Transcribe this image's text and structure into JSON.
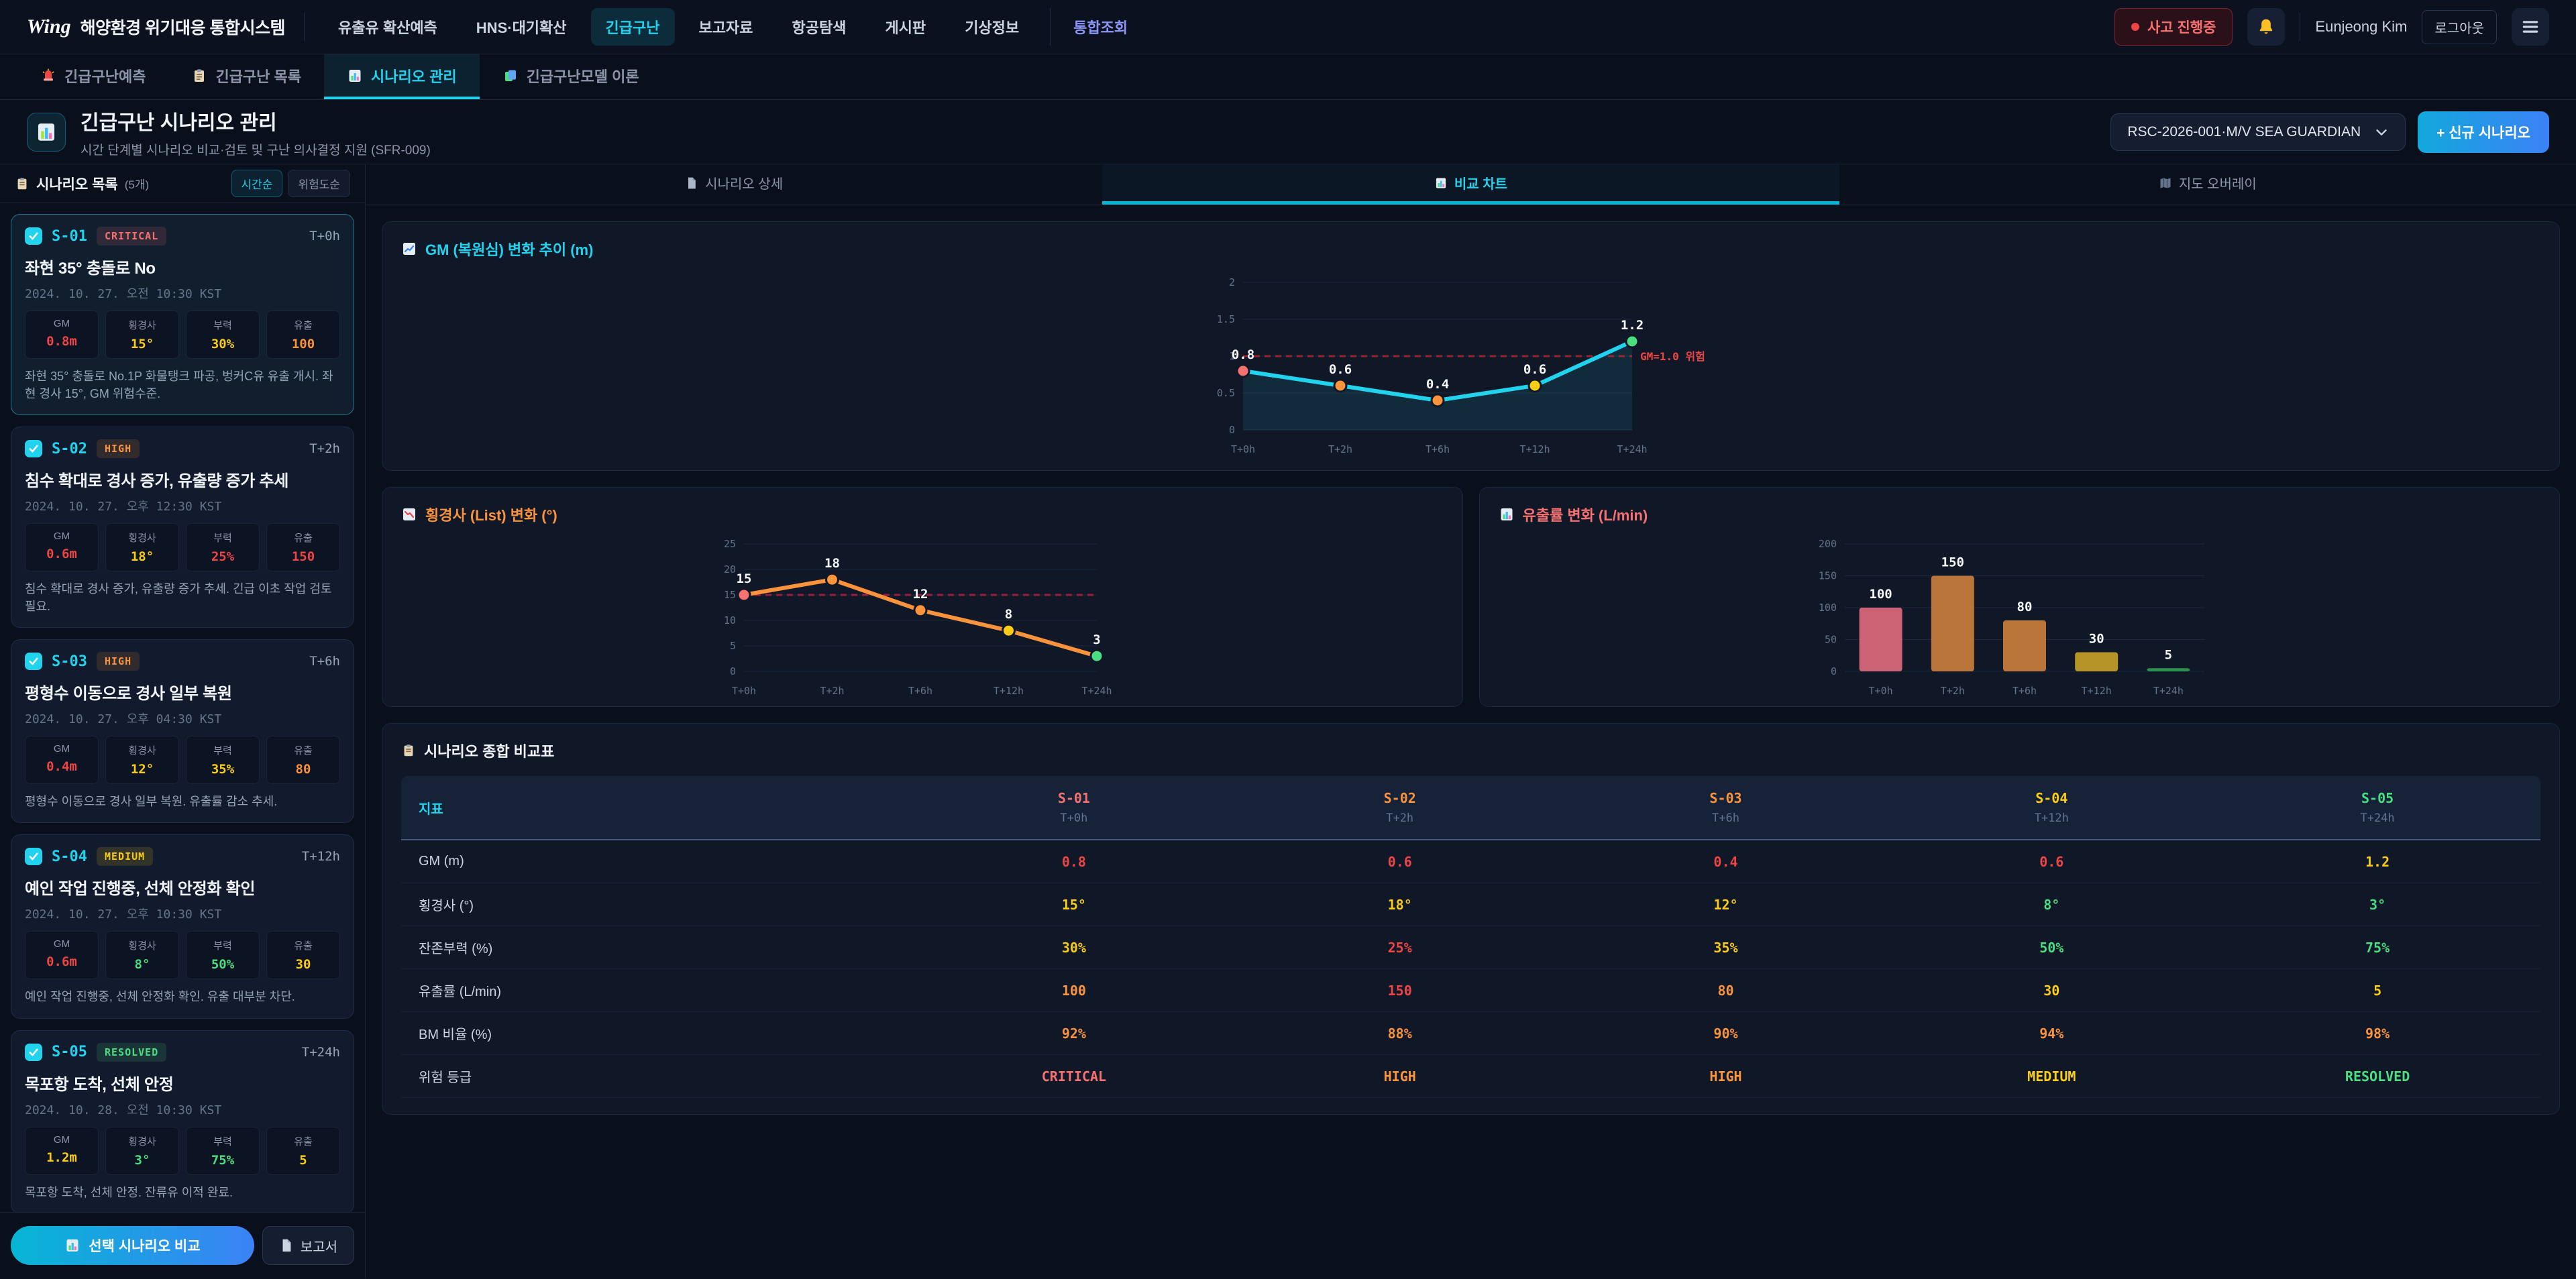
{
  "brand": {
    "logo": "Wing",
    "title": "해양환경 위기대응 통합시스템"
  },
  "nav": {
    "items": [
      {
        "label": "유출유 확산예측"
      },
      {
        "label": "HNS·대기확산"
      },
      {
        "label": "긴급구난",
        "active": true
      },
      {
        "label": "보고자료"
      },
      {
        "label": "항공탐색"
      },
      {
        "label": "게시판"
      },
      {
        "label": "기상정보"
      },
      {
        "label": "통합조회",
        "accent": true
      }
    ],
    "status_badge": "사고 진행중",
    "user_name": "Eunjeong Kim",
    "logout_label": "로그아웃"
  },
  "tabs": {
    "items": [
      {
        "label": "긴급구난예측",
        "icon": "siren"
      },
      {
        "label": "긴급구난 목록",
        "icon": "clipboard"
      },
      {
        "label": "시나리오 관리",
        "icon": "bar-chart",
        "active": true
      },
      {
        "label": "긴급구난모델 이론",
        "icon": "layers"
      }
    ]
  },
  "page": {
    "title": "긴급구난 시나리오 관리",
    "subtitle": "시간 단계별 시나리오 비교·검토 및 구난 의사결정 지원 (SFR-009)",
    "case_selector": "RSC-2026-001·M/V SEA GUARDIAN",
    "new_scenario_button": "+ 신규 시나리오"
  },
  "sidebar": {
    "list_title": "시나리오 목록",
    "list_count": "(5개)",
    "sort_buttons": [
      {
        "label": "시간순",
        "active": true
      },
      {
        "label": "위험도순",
        "active": false
      }
    ],
    "scenarios": [
      {
        "id": "S-01",
        "level": "CRITICAL",
        "level_color": "#f87171",
        "time": "T+0h",
        "title": "좌현 35° 충돌로 No",
        "datetime": "2024. 10. 27. 오전 10:30 KST",
        "selected": true,
        "checked": true,
        "metrics": [
          {
            "label": "GM",
            "value": "0.8m",
            "color": "#ef4444"
          },
          {
            "label": "횡경사",
            "value": "15°",
            "color": "#facc15"
          },
          {
            "label": "부력",
            "value": "30%",
            "color": "#facc15"
          },
          {
            "label": "유출",
            "value": "100",
            "color": "#fb923c"
          }
        ],
        "desc": "좌현 35° 충돌로 No.1P 화물탱크 파공, 벙커C유 유출 개시. 좌현 경사 15°, GM 위험수준."
      },
      {
        "id": "S-02",
        "level": "HIGH",
        "level_color": "#fb923c",
        "time": "T+2h",
        "title": "침수 확대로 경사 증가, 유출량 증가 추세",
        "datetime": "2024. 10. 27. 오후 12:30 KST",
        "selected": false,
        "checked": true,
        "metrics": [
          {
            "label": "GM",
            "value": "0.6m",
            "color": "#ef4444"
          },
          {
            "label": "횡경사",
            "value": "18°",
            "color": "#facc15"
          },
          {
            "label": "부력",
            "value": "25%",
            "color": "#ef4444"
          },
          {
            "label": "유출",
            "value": "150",
            "color": "#ef4444"
          }
        ],
        "desc": "침수 확대로 경사 증가, 유출량 증가 추세. 긴급 이초 작업 검토 필요."
      },
      {
        "id": "S-03",
        "level": "HIGH",
        "level_color": "#fb923c",
        "time": "T+6h",
        "title": "평형수 이동으로 경사 일부 복원",
        "datetime": "2024. 10. 27. 오후 04:30 KST",
        "selected": false,
        "checked": true,
        "metrics": [
          {
            "label": "GM",
            "value": "0.4m",
            "color": "#ef4444"
          },
          {
            "label": "횡경사",
            "value": "12°",
            "color": "#facc15"
          },
          {
            "label": "부력",
            "value": "35%",
            "color": "#facc15"
          },
          {
            "label": "유출",
            "value": "80",
            "color": "#fb923c"
          }
        ],
        "desc": "평형수 이동으로 경사 일부 복원. 유출률 감소 추세."
      },
      {
        "id": "S-04",
        "level": "MEDIUM",
        "level_color": "#facc15",
        "time": "T+12h",
        "title": "예인 작업 진행중, 선체 안정화 확인",
        "datetime": "2024. 10. 27. 오후 10:30 KST",
        "selected": false,
        "checked": true,
        "metrics": [
          {
            "label": "GM",
            "value": "0.6m",
            "color": "#ef4444"
          },
          {
            "label": "횡경사",
            "value": "8°",
            "color": "#4ade80"
          },
          {
            "label": "부력",
            "value": "50%",
            "color": "#4ade80"
          },
          {
            "label": "유출",
            "value": "30",
            "color": "#facc15"
          }
        ],
        "desc": "예인 작업 진행중, 선체 안정화 확인. 유출 대부분 차단."
      },
      {
        "id": "S-05",
        "level": "RESOLVED",
        "level_color": "#4ade80",
        "time": "T+24h",
        "title": "목포항 도착, 선체 안정",
        "datetime": "2024. 10. 28. 오전 10:30 KST",
        "selected": false,
        "checked": true,
        "metrics": [
          {
            "label": "GM",
            "value": "1.2m",
            "color": "#facc15"
          },
          {
            "label": "횡경사",
            "value": "3°",
            "color": "#4ade80"
          },
          {
            "label": "부력",
            "value": "75%",
            "color": "#4ade80"
          },
          {
            "label": "유출",
            "value": "5",
            "color": "#facc15"
          }
        ],
        "desc": "목포항 도착, 선체 안정. 잔류유 이적 완료."
      }
    ],
    "compare_button": "선택 시나리오 비교",
    "report_button": "보고서"
  },
  "content_tabs": {
    "items": [
      {
        "label": "시나리오 상세",
        "icon": "doc"
      },
      {
        "label": "비교 차트",
        "icon": "bar-chart",
        "active": true
      },
      {
        "label": "지도 오버레이",
        "icon": "map"
      }
    ]
  },
  "chart_data": [
    {
      "type": "line",
      "title": "GM (복원심) 변화 추이 (m)",
      "title_color": "#22d3ee",
      "categories": [
        "T+0h",
        "T+2h",
        "T+6h",
        "T+12h",
        "T+24h"
      ],
      "values": [
        0.8,
        0.6,
        0.4,
        0.6,
        1.2
      ],
      "ylim": [
        0,
        2
      ],
      "yticks": [
        0,
        0.5,
        1,
        1.5,
        2
      ],
      "threshold": {
        "value": 1.0,
        "label": "GM=1.0 위험",
        "color": "#dc2626"
      },
      "line_color": "#22d3ee",
      "area": true,
      "point_colors": [
        "#f87171",
        "#fb923c",
        "#fb923c",
        "#facc15",
        "#4ade80"
      ],
      "grid": true,
      "legend": "none"
    },
    {
      "type": "line",
      "title": "횡경사 (List) 변화 (°)",
      "title_color": "#fb923c",
      "categories": [
        "T+0h",
        "T+2h",
        "T+6h",
        "T+12h",
        "T+24h"
      ],
      "values": [
        15,
        18,
        12,
        8,
        3
      ],
      "ylim": [
        0,
        25
      ],
      "yticks": [
        0,
        5,
        10,
        15,
        20,
        25
      ],
      "threshold": {
        "value": 15,
        "label": "",
        "color": "#e11d48"
      },
      "line_color": "#fb923c",
      "area": false,
      "point_colors": [
        "#f87171",
        "#fb923c",
        "#fb923c",
        "#facc15",
        "#4ade80"
      ],
      "grid": true,
      "legend": "none"
    },
    {
      "type": "bar",
      "title": "유출률 변화 (L/min)",
      "title_color": "#f87171",
      "categories": [
        "T+0h",
        "T+2h",
        "T+6h",
        "T+12h",
        "T+24h"
      ],
      "values": [
        100,
        150,
        80,
        30,
        5
      ],
      "ylim": [
        0,
        200
      ],
      "yticks": [
        0,
        50,
        100,
        150,
        200
      ],
      "bar_colors": [
        "#e06c7d",
        "#cd7f3d",
        "#cd7f3d",
        "#c9a227",
        "#2f9e4f"
      ],
      "grid": true,
      "legend": "none"
    }
  ],
  "table": {
    "title": "시나리오 종합 비교표",
    "index_label": "지표",
    "columns": [
      {
        "label": "S-01",
        "sub": "T+0h",
        "color": "#f87171"
      },
      {
        "label": "S-02",
        "sub": "T+2h",
        "color": "#fb923c"
      },
      {
        "label": "S-03",
        "sub": "T+6h",
        "color": "#fb923c"
      },
      {
        "label": "S-04",
        "sub": "T+12h",
        "color": "#facc15"
      },
      {
        "label": "S-05",
        "sub": "T+24h",
        "color": "#4ade80"
      }
    ],
    "rows": [
      {
        "label": "GM (m)",
        "cells": [
          {
            "v": "0.8",
            "c": "#ef4444"
          },
          {
            "v": "0.6",
            "c": "#ef4444"
          },
          {
            "v": "0.4",
            "c": "#ef4444"
          },
          {
            "v": "0.6",
            "c": "#ef4444"
          },
          {
            "v": "1.2",
            "c": "#facc15"
          }
        ]
      },
      {
        "label": "횡경사 (°)",
        "cells": [
          {
            "v": "15°",
            "c": "#facc15"
          },
          {
            "v": "18°",
            "c": "#facc15"
          },
          {
            "v": "12°",
            "c": "#facc15"
          },
          {
            "v": "8°",
            "c": "#4ade80"
          },
          {
            "v": "3°",
            "c": "#4ade80"
          }
        ]
      },
      {
        "label": "잔존부력 (%)",
        "cells": [
          {
            "v": "30%",
            "c": "#facc15"
          },
          {
            "v": "25%",
            "c": "#ef4444"
          },
          {
            "v": "35%",
            "c": "#facc15"
          },
          {
            "v": "50%",
            "c": "#4ade80"
          },
          {
            "v": "75%",
            "c": "#4ade80"
          }
        ]
      },
      {
        "label": "유출률 (L/min)",
        "cells": [
          {
            "v": "100",
            "c": "#fb923c"
          },
          {
            "v": "150",
            "c": "#ef4444"
          },
          {
            "v": "80",
            "c": "#fb923c"
          },
          {
            "v": "30",
            "c": "#facc15"
          },
          {
            "v": "5",
            "c": "#facc15"
          }
        ]
      },
      {
        "label": "BM 비율 (%)",
        "cells": [
          {
            "v": "92%",
            "c": "#fb923c"
          },
          {
            "v": "88%",
            "c": "#fb923c"
          },
          {
            "v": "90%",
            "c": "#fb923c"
          },
          {
            "v": "94%",
            "c": "#fb923c"
          },
          {
            "v": "98%",
            "c": "#fb923c"
          }
        ]
      },
      {
        "label": "위험 등급",
        "cells": [
          {
            "v": "CRITICAL",
            "c": "#f87171"
          },
          {
            "v": "HIGH",
            "c": "#fb923c"
          },
          {
            "v": "HIGH",
            "c": "#fb923c"
          },
          {
            "v": "MEDIUM",
            "c": "#facc15"
          },
          {
            "v": "RESOLVED",
            "c": "#4ade80"
          }
        ]
      }
    ]
  }
}
